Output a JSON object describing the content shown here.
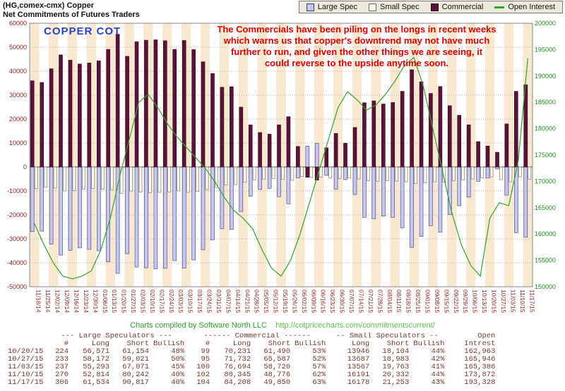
{
  "header": {
    "title": "(HG,comex-cmx) Copper",
    "subtitle": "Net Commitments of Futures Traders"
  },
  "legend": {
    "items": [
      {
        "label": "Large Spec",
        "swatch": "box",
        "color": "#c6c6ee",
        "border": "#3a3a7a"
      },
      {
        "label": "Small Spec",
        "swatch": "box",
        "color": "#fcfbee",
        "border": "#6b6b5a"
      },
      {
        "label": "Commercial",
        "swatch": "box",
        "color": "#5c1238",
        "border": "#30081d"
      },
      {
        "label": "Open Interest",
        "swatch": "line",
        "color": "#2ca52c"
      }
    ]
  },
  "annotations": {
    "chart_label": "COPPER COT",
    "chart_label_color": "#2244cc",
    "note": "The Commercials have been piling on the longs in recent weeks\nwhich warns us that copper's downtrend may not have much\nfurther to run, and given the other things we are seeing, it\ncould reverse to the upside anytime soon.",
    "note_color": "#e60000"
  },
  "footer": {
    "credit": "Charts compiled by Software North LLC",
    "url": "http://cotpricecharts.com/commitmentscurrent/"
  },
  "chart_data": {
    "type": "bar",
    "title": "Copper COT - Net Commitments of Futures Traders",
    "legend_position": "top-right",
    "grid": true,
    "stripe_color": "#f8e8d0",
    "left_axis": {
      "min": -50000,
      "max": 60000,
      "tick": 10000,
      "color": "#8b2222"
    },
    "right_axis": {
      "min": 150000,
      "max": 200000,
      "tick": 5000,
      "color": "#22881f",
      "label": "Open Interest"
    },
    "x": [
      "11/18/14",
      "11/25/14",
      "12/02/14",
      "12/09/14",
      "12/16/14",
      "12/23/14",
      "12/30/14",
      "01/06/15",
      "01/13/15",
      "01/20/15",
      "01/27/15",
      "02/03/15",
      "02/10/15",
      "02/17/15",
      "02/24/15",
      "03/03/15",
      "03/10/15",
      "03/17/15",
      "03/24/15",
      "03/31/15",
      "04/07/15",
      "04/14/15",
      "04/21/15",
      "04/28/15",
      "05/05/15",
      "05/12/15",
      "05/19/15",
      "05/26/15",
      "06/02/15",
      "06/09/15",
      "06/16/15",
      "06/23/15",
      "06/30/15",
      "07/07/15",
      "07/14/15",
      "07/21/15",
      "07/28/15",
      "08/04/15",
      "08/11/15",
      "08/18/15",
      "08/25/15",
      "09/01/15",
      "09/08/15",
      "09/15/15",
      "09/22/15",
      "09/29/15",
      "10/06/15",
      "10/13/15",
      "10/20/15",
      "10/27/15",
      "11/03/15",
      "11/10/15",
      "11/17/15"
    ],
    "series": [
      {
        "name": "Large Spec",
        "type": "bar",
        "axis": "left",
        "color": "#c6c6ee",
        "border": "#3a3a7a",
        "values": [
          -27000,
          -26800,
          -32200,
          -36800,
          -34800,
          -33800,
          -34400,
          -35000,
          -39600,
          -44400,
          -36200,
          -41800,
          -42100,
          -42500,
          -42300,
          -39100,
          -42200,
          -38800,
          -34500,
          -30400,
          -25700,
          -26100,
          -18600,
          -12200,
          -9400,
          -8900,
          -12400,
          -15400,
          -4600,
          8700,
          9800,
          -3500,
          -9200,
          -5300,
          -11500,
          -21000,
          -21600,
          -20500,
          -21000,
          -25400,
          -33600,
          -29000,
          -24500,
          -27200,
          -19800,
          -16200,
          -12600,
          -6000,
          -4583,
          -849,
          -11778,
          -27428,
          -29283
        ]
      },
      {
        "name": "Small Spec",
        "type": "bar",
        "axis": "left",
        "color": "#fcfbee",
        "border": "#6b6b5a",
        "values": [
          -9000,
          -8500,
          -8800,
          -10000,
          -9800,
          -9200,
          -9000,
          -9300,
          -9500,
          -11000,
          -10000,
          -10500,
          -10800,
          -10600,
          -10400,
          -10000,
          -10600,
          -10200,
          -9400,
          -8600,
          -7600,
          -7400,
          -6400,
          -5400,
          -5000,
          -4800,
          -5200,
          -5600,
          -4000,
          -4400,
          -4300,
          -4500,
          -4800,
          -4600,
          -5000,
          -5800,
          -6000,
          -5800,
          -5900,
          -6200,
          -7000,
          -6600,
          -6200,
          -6400,
          -5800,
          -5400,
          -5000,
          -4600,
          -4158,
          -5296,
          -6196,
          -4141,
          -5075
        ]
      },
      {
        "name": "Commercial",
        "type": "bar",
        "axis": "left",
        "color": "#5c1238",
        "border": "#30081d",
        "values": [
          36000,
          35300,
          41000,
          46800,
          44600,
          43000,
          43400,
          44300,
          49100,
          55400,
          46200,
          52300,
          52900,
          53100,
          52700,
          49100,
          52800,
          49000,
          43900,
          39000,
          33300,
          33500,
          25000,
          17600,
          14400,
          13700,
          17600,
          21000,
          8600,
          -4300,
          -5500,
          8000,
          14000,
          9900,
          16500,
          26800,
          27600,
          26300,
          26900,
          31600,
          40600,
          35600,
          30700,
          33600,
          25600,
          21600,
          17600,
          10600,
          8741,
          6145,
          17974,
          31569,
          34358
        ]
      },
      {
        "name": "Open Interest",
        "type": "line",
        "axis": "right",
        "color": "#2ca52c",
        "values": [
          162000,
          158000,
          154500,
          152000,
          151500,
          152000,
          153000,
          157000,
          163000,
          171000,
          178000,
          185000,
          186500,
          184000,
          181000,
          178500,
          176500,
          174500,
          172500,
          170000,
          167000,
          164500,
          163000,
          161000,
          157000,
          153500,
          152000,
          155000,
          160000,
          166000,
          172000,
          178000,
          184000,
          187000,
          185500,
          183500,
          184500,
          186500,
          189000,
          192000,
          193500,
          188000,
          180000,
          172000,
          164000,
          158000,
          154000,
          152000,
          162963,
          165946,
          165386,
          173872,
          193328
        ]
      }
    ]
  },
  "table": {
    "text_color": "#703a30",
    "group_headers": [
      {
        "label": "",
        "span": 1,
        "align": "left"
      },
      {
        "label": "--- Large Speculators ---",
        "span": 4,
        "align": "center"
      },
      {
        "label": "------ Commercial ------",
        "span": 4,
        "align": "center"
      },
      {
        "label": "-- Small Speculators --",
        "span": 3,
        "align": "center"
      },
      {
        "label": "Open",
        "span": 1,
        "align": "right"
      }
    ],
    "columns": [
      "",
      "#",
      "Long",
      "Short",
      "Bullish",
      "#",
      "Long",
      "Short",
      "Bullish",
      "Long",
      "Short",
      "Bullish",
      "Intrest"
    ],
    "rows": [
      [
        "10/20/15",
        "224",
        "56,571",
        "61,154",
        "48%",
        "99",
        "70,231",
        "61,490",
        "53%",
        "13946",
        "18,104",
        "44%",
        "162,963"
      ],
      [
        "10/27/15",
        "233",
        "58,172",
        "59,021",
        "50%",
        "95",
        "71,732",
        "65,587",
        "52%",
        "13687",
        "18,983",
        "42%",
        "165,946"
      ],
      [
        "11/03/15",
        "237",
        "55,293",
        "67,071",
        "45%",
        "100",
        "76,694",
        "58,720",
        "57%",
        "13567",
        "19,763",
        "41%",
        "165,386"
      ],
      [
        "11/10/15",
        "270",
        "52,814",
        "80,242",
        "40%",
        "102",
        "80,345",
        "48,776",
        "62%",
        "16191",
        "20,332",
        "44%",
        "173,872"
      ],
      [
        "11/17/15",
        "306",
        "61,534",
        "90,817",
        "40%",
        "104",
        "84,208",
        "49,850",
        "63%",
        "16178",
        "21,253",
        "43%",
        "193,328"
      ]
    ]
  }
}
